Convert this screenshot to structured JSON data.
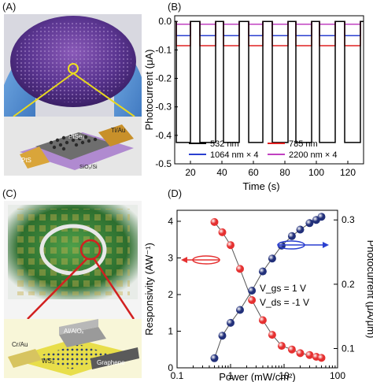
{
  "panels": {
    "a": "(A)",
    "b": "(B)",
    "c": "(C)",
    "d": "(D)"
  },
  "photo_a": {
    "label_top_right": "Ti/Au",
    "label_material": "PtSe₂",
    "label_bottom_left": "PtS",
    "label_substrate": "SiO₂/Si"
  },
  "photo_c": {
    "label_contact": "Cr/Au",
    "label_gate": "Al/AlOₓ",
    "label_ws": "WS₂",
    "label_graphene": "Graphene"
  },
  "colors": {
    "c532": "#000000",
    "c785": "#e02020",
    "c1064": "#2a3fd0",
    "c2200": "#c040c0",
    "red_marker": "#e53030",
    "blue_marker": "#22307a"
  },
  "chart_data": [
    {
      "type": "line",
      "xlabel": "Time (s)",
      "ylabel": "Photocurrent (μA)",
      "xlim": [
        10,
        130
      ],
      "ylim": [
        -0.5,
        0.02
      ],
      "xticks": [
        "20",
        "40",
        "60",
        "80",
        "100",
        "120"
      ],
      "yticks": [
        "0.0",
        "-0.1",
        "-0.2",
        "-0.3",
        "-0.4",
        "-0.5"
      ],
      "on_intervals": [
        [
          11,
          20
        ],
        [
          26,
          36
        ],
        [
          41,
          51
        ],
        [
          57,
          66
        ],
        [
          72,
          82
        ],
        [
          87,
          97
        ],
        [
          102,
          112
        ],
        [
          118,
          128
        ]
      ],
      "series": [
        {
          "name": "532 nm",
          "off": 0.0,
          "on": -0.425,
          "color": "#000000"
        },
        {
          "name": "785 nm",
          "off": 0.0,
          "on": -0.085,
          "color": "#e02020"
        },
        {
          "name": "1064 nm × 4",
          "off": 0.0,
          "on": -0.05,
          "color": "#2a3fd0"
        },
        {
          "name": "2200 nm × 4",
          "off": 0.0,
          "on": -0.01,
          "color": "#c040c0"
        }
      ],
      "legend": "bottom"
    },
    {
      "type": "scatter",
      "xlabel": "Power (mW/cm²)",
      "ylabel_left": "Responsivity (AW⁻¹)",
      "ylabel_right": "Photocurrent (μA/μm)",
      "xscale": "log",
      "xlim": [
        0.1,
        100
      ],
      "ylim_left": [
        0,
        4.3
      ],
      "ylim_right": [
        0.07,
        0.315
      ],
      "xticks": [
        "0.1",
        "1",
        "10",
        "100"
      ],
      "yticks_left": [
        "0",
        "1",
        "2",
        "3",
        "4"
      ],
      "yticks_right": [
        "0.1",
        "0.2",
        "0.3"
      ],
      "annotations": [
        "V_gs = 1 V",
        "V_ds = -1 V"
      ],
      "series": [
        {
          "axis": "left",
          "color": "#e53030",
          "points": [
            [
              0.5,
              3.98
            ],
            [
              0.7,
              3.7
            ],
            [
              1.0,
              3.35
            ],
            [
              1.5,
              2.7
            ],
            [
              2.5,
              1.85
            ],
            [
              4.0,
              1.3
            ],
            [
              6.0,
              0.9
            ],
            [
              9.0,
              0.6
            ],
            [
              14.0,
              0.5
            ],
            [
              20.0,
              0.4
            ],
            [
              30.0,
              0.35
            ],
            [
              40.0,
              0.3
            ],
            [
              50.0,
              0.27
            ]
          ]
        },
        {
          "axis": "right",
          "color": "#22307a",
          "points": [
            [
              0.5,
              0.085
            ],
            [
              0.7,
              0.12
            ],
            [
              1.0,
              0.14
            ],
            [
              1.5,
              0.16
            ],
            [
              2.5,
              0.19
            ],
            [
              4.0,
              0.22
            ],
            [
              6.0,
              0.24
            ],
            [
              9.0,
              0.26
            ],
            [
              14.0,
              0.275
            ],
            [
              20.0,
              0.285
            ],
            [
              30.0,
              0.295
            ],
            [
              40.0,
              0.3
            ],
            [
              50.0,
              0.305
            ]
          ]
        }
      ]
    }
  ]
}
